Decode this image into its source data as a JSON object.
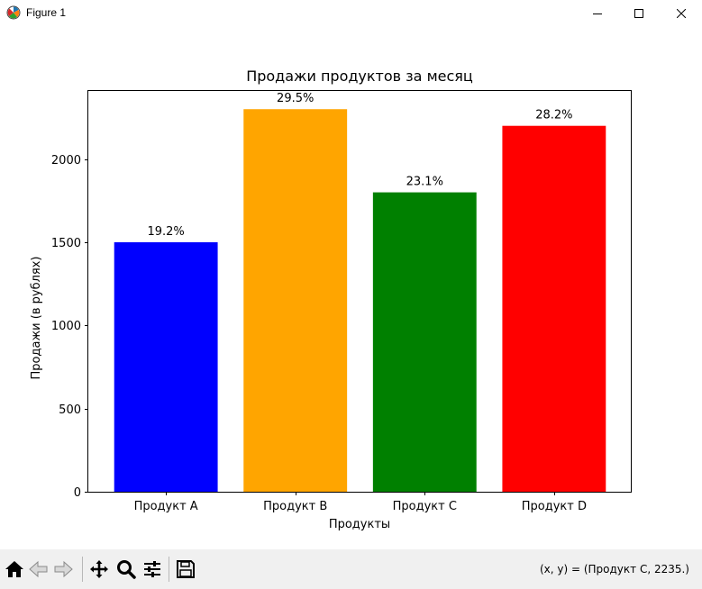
{
  "window": {
    "title": "Figure 1",
    "icon": "matplotlib-icon",
    "controls": [
      "minimize-icon",
      "maximize-icon",
      "close-icon"
    ]
  },
  "chart_data": {
    "type": "bar",
    "title": "Продажи продуктов за месяц",
    "xlabel": "Продукты",
    "ylabel": "Продажи (в рублях)",
    "categories": [
      "Продукт A",
      "Продукт B",
      "Продукт C",
      "Продукт D"
    ],
    "values": [
      1500,
      2300,
      1800,
      2200
    ],
    "colors": [
      "#0000ff",
      "#ffa500",
      "#008000",
      "#ff0000"
    ],
    "data_labels": [
      "19.2%",
      "29.5%",
      "23.1%",
      "28.2%"
    ],
    "ylim": [
      0,
      2415
    ],
    "yticks": [
      0,
      500,
      1000,
      1500,
      2000
    ],
    "grid": false
  },
  "toolbar": {
    "buttons": [
      "home-icon",
      "back-icon",
      "forward-icon",
      "pan-icon",
      "zoom-icon",
      "configure-subplots-icon",
      "save-icon"
    ],
    "coords_text": "(x, y) = (Продукт C, 2235.)"
  }
}
